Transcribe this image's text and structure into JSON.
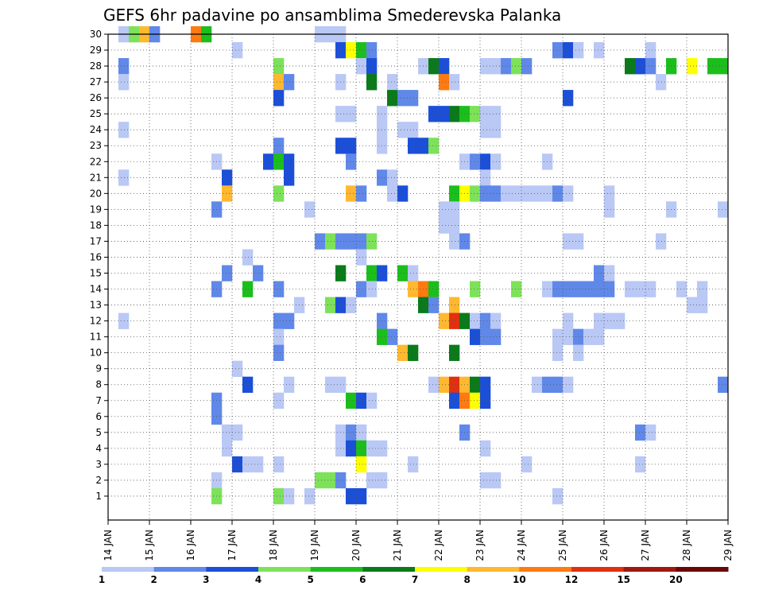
{
  "chart_data": {
    "type": "heatmap",
    "title": "GEFS 6hr padavine po ansamblima Smederevska Palanka",
    "x_tick_labels": [
      "14 JAN",
      "15 JAN",
      "16 JAN",
      "17 JAN",
      "18 JAN",
      "19 JAN",
      "20 JAN",
      "21 JAN",
      "22 JAN",
      "23 JAN",
      "24 JAN",
      "25 JAN",
      "26 JAN",
      "27 JAN",
      "28 JAN",
      "29 JAN"
    ],
    "y_tick_labels": [
      "1",
      "2",
      "3",
      "4",
      "5",
      "6",
      "7",
      "8",
      "9",
      "10",
      "11",
      "12",
      "13",
      "14",
      "15",
      "16",
      "17",
      "18",
      "19",
      "20",
      "21",
      "22",
      "23",
      "24",
      "25",
      "26",
      "27",
      "28",
      "29",
      "30"
    ],
    "xlim_steps": [
      0,
      60
    ],
    "ylim": [
      0,
      30
    ],
    "grid": true,
    "colorbar": {
      "labels": [
        "1",
        "2",
        "3",
        "4",
        "5",
        "6",
        "7",
        "8",
        "10",
        "12",
        "15",
        "20"
      ],
      "colors": [
        "#b9c8f5",
        "#6088e8",
        "#1c4fd8",
        "#7de25a",
        "#1cbe1c",
        "#0a7a1a",
        "#ffff00",
        "#ffb830",
        "#ff7a10",
        "#e03010",
        "#a01810",
        "#6a0808"
      ]
    },
    "cells": [
      [
        1,
        30,
        "#b9c8f5"
      ],
      [
        2,
        30,
        "#7de25a"
      ],
      [
        3,
        30,
        "#ffb830"
      ],
      [
        4,
        30,
        "#6088e8"
      ],
      [
        8,
        30,
        "#ff7a10"
      ],
      [
        9,
        30,
        "#1cbe1c"
      ],
      [
        20,
        30,
        "#b9c8f5"
      ],
      [
        21,
        30,
        "#b9c8f5"
      ],
      [
        22,
        30,
        "#b9c8f5"
      ],
      [
        12,
        29,
        "#b9c8f5"
      ],
      [
        22,
        29,
        "#1c4fd8"
      ],
      [
        23,
        29,
        "#ffff00"
      ],
      [
        24,
        29,
        "#1cbe1c"
      ],
      [
        25,
        29,
        "#6088e8"
      ],
      [
        43,
        29,
        "#6088e8"
      ],
      [
        44,
        29,
        "#1c4fd8"
      ],
      [
        45,
        29,
        "#b9c8f5"
      ],
      [
        47,
        29,
        "#b9c8f5"
      ],
      [
        52,
        29,
        "#b9c8f5"
      ],
      [
        1,
        28,
        "#6088e8"
      ],
      [
        16,
        28,
        "#7de25a"
      ],
      [
        24,
        28,
        "#b9c8f5"
      ],
      [
        25,
        28,
        "#1c4fd8"
      ],
      [
        30,
        28,
        "#b9c8f5"
      ],
      [
        31,
        28,
        "#0a7a1a"
      ],
      [
        32,
        28,
        "#1c4fd8"
      ],
      [
        36,
        28,
        "#b9c8f5"
      ],
      [
        37,
        28,
        "#b9c8f5"
      ],
      [
        38,
        28,
        "#6088e8"
      ],
      [
        39,
        28,
        "#7de25a"
      ],
      [
        40,
        28,
        "#6088e8"
      ],
      [
        50,
        28,
        "#0a7a1a"
      ],
      [
        51,
        28,
        "#1c4fd8"
      ],
      [
        52,
        28,
        "#6088e8"
      ],
      [
        54,
        28,
        "#1cbe1c"
      ],
      [
        56,
        28,
        "#ffff00"
      ],
      [
        58,
        28,
        "#1cbe1c"
      ],
      [
        59,
        28,
        "#1cbe1c"
      ],
      [
        1,
        27,
        "#b9c8f5"
      ],
      [
        16,
        27,
        "#ffb830"
      ],
      [
        17,
        27,
        "#6088e8"
      ],
      [
        22,
        27,
        "#b9c8f5"
      ],
      [
        25,
        27,
        "#0a7a1a"
      ],
      [
        27,
        27,
        "#b9c8f5"
      ],
      [
        32,
        27,
        "#ff7a10"
      ],
      [
        33,
        27,
        "#b9c8f5"
      ],
      [
        53,
        27,
        "#b9c8f5"
      ],
      [
        16,
        26,
        "#1c4fd8"
      ],
      [
        27,
        26,
        "#0a7a1a"
      ],
      [
        28,
        26,
        "#6088e8"
      ],
      [
        29,
        26,
        "#6088e8"
      ],
      [
        44,
        26,
        "#1c4fd8"
      ],
      [
        22,
        25,
        "#b9c8f5"
      ],
      [
        23,
        25,
        "#b9c8f5"
      ],
      [
        26,
        25,
        "#b9c8f5"
      ],
      [
        31,
        25,
        "#1c4fd8"
      ],
      [
        32,
        25,
        "#1c4fd8"
      ],
      [
        33,
        25,
        "#0a7a1a"
      ],
      [
        34,
        25,
        "#1cbe1c"
      ],
      [
        35,
        25,
        "#7de25a"
      ],
      [
        36,
        25,
        "#b9c8f5"
      ],
      [
        37,
        25,
        "#b9c8f5"
      ],
      [
        1,
        24,
        "#b9c8f5"
      ],
      [
        26,
        24,
        "#b9c8f5"
      ],
      [
        28,
        24,
        "#b9c8f5"
      ],
      [
        29,
        24,
        "#b9c8f5"
      ],
      [
        36,
        24,
        "#b9c8f5"
      ],
      [
        37,
        24,
        "#b9c8f5"
      ],
      [
        16,
        23,
        "#6088e8"
      ],
      [
        22,
        23,
        "#1c4fd8"
      ],
      [
        23,
        23,
        "#1c4fd8"
      ],
      [
        26,
        23,
        "#b9c8f5"
      ],
      [
        29,
        23,
        "#1c4fd8"
      ],
      [
        30,
        23,
        "#1c4fd8"
      ],
      [
        31,
        23,
        "#7de25a"
      ],
      [
        10,
        22,
        "#b9c8f5"
      ],
      [
        15,
        22,
        "#1c4fd8"
      ],
      [
        16,
        22,
        "#1cbe1c"
      ],
      [
        17,
        22,
        "#1c4fd8"
      ],
      [
        23,
        22,
        "#6088e8"
      ],
      [
        34,
        22,
        "#b9c8f5"
      ],
      [
        35,
        22,
        "#6088e8"
      ],
      [
        36,
        22,
        "#1c4fd8"
      ],
      [
        37,
        22,
        "#b9c8f5"
      ],
      [
        42,
        22,
        "#b9c8f5"
      ],
      [
        1,
        21,
        "#b9c8f5"
      ],
      [
        11,
        21,
        "#1c4fd8"
      ],
      [
        17,
        21,
        "#1c4fd8"
      ],
      [
        26,
        21,
        "#6088e8"
      ],
      [
        27,
        21,
        "#b9c8f5"
      ],
      [
        36,
        21,
        "#b9c8f5"
      ],
      [
        11,
        20,
        "#ffb830"
      ],
      [
        16,
        20,
        "#7de25a"
      ],
      [
        23,
        20,
        "#ffb830"
      ],
      [
        24,
        20,
        "#6088e8"
      ],
      [
        27,
        20,
        "#b9c8f5"
      ],
      [
        28,
        20,
        "#1c4fd8"
      ],
      [
        33,
        20,
        "#1cbe1c"
      ],
      [
        34,
        20,
        "#ffff00"
      ],
      [
        35,
        20,
        "#7de25a"
      ],
      [
        36,
        20,
        "#6088e8"
      ],
      [
        37,
        20,
        "#6088e8"
      ],
      [
        38,
        20,
        "#b9c8f5"
      ],
      [
        39,
        20,
        "#b9c8f5"
      ],
      [
        40,
        20,
        "#b9c8f5"
      ],
      [
        41,
        20,
        "#b9c8f5"
      ],
      [
        42,
        20,
        "#b9c8f5"
      ],
      [
        43,
        20,
        "#6088e8"
      ],
      [
        44,
        20,
        "#b9c8f5"
      ],
      [
        48,
        20,
        "#b9c8f5"
      ],
      [
        10,
        19,
        "#6088e8"
      ],
      [
        19,
        19,
        "#b9c8f5"
      ],
      [
        32,
        19,
        "#b9c8f5"
      ],
      [
        33,
        19,
        "#b9c8f5"
      ],
      [
        48,
        19,
        "#b9c8f5"
      ],
      [
        54,
        19,
        "#b9c8f5"
      ],
      [
        59,
        19,
        "#b9c8f5"
      ],
      [
        32,
        18,
        "#b9c8f5"
      ],
      [
        33,
        18,
        "#b9c8f5"
      ],
      [
        20,
        17,
        "#6088e8"
      ],
      [
        21,
        17,
        "#7de25a"
      ],
      [
        22,
        17,
        "#6088e8"
      ],
      [
        23,
        17,
        "#6088e8"
      ],
      [
        24,
        17,
        "#6088e8"
      ],
      [
        25,
        17,
        "#7de25a"
      ],
      [
        33,
        17,
        "#b9c8f5"
      ],
      [
        34,
        17,
        "#6088e8"
      ],
      [
        44,
        17,
        "#b9c8f5"
      ],
      [
        45,
        17,
        "#b9c8f5"
      ],
      [
        53,
        17,
        "#b9c8f5"
      ],
      [
        24,
        16,
        "#b9c8f5"
      ],
      [
        13,
        16,
        "#b9c8f5"
      ],
      [
        11,
        15,
        "#6088e8"
      ],
      [
        14,
        15,
        "#6088e8"
      ],
      [
        22,
        15,
        "#0a7a1a"
      ],
      [
        25,
        15,
        "#1cbe1c"
      ],
      [
        26,
        15,
        "#1c4fd8"
      ],
      [
        28,
        15,
        "#1cbe1c"
      ],
      [
        29,
        15,
        "#b9c8f5"
      ],
      [
        47,
        15,
        "#6088e8"
      ],
      [
        48,
        15,
        "#b9c8f5"
      ],
      [
        10,
        14,
        "#6088e8"
      ],
      [
        13,
        14,
        "#1cbe1c"
      ],
      [
        16,
        14,
        "#6088e8"
      ],
      [
        24,
        14,
        "#6088e8"
      ],
      [
        25,
        14,
        "#b9c8f5"
      ],
      [
        29,
        14,
        "#ffb830"
      ],
      [
        30,
        14,
        "#ff7a10"
      ],
      [
        31,
        14,
        "#1cbe1c"
      ],
      [
        35,
        14,
        "#7de25a"
      ],
      [
        39,
        14,
        "#7de25a"
      ],
      [
        42,
        14,
        "#b9c8f5"
      ],
      [
        43,
        14,
        "#6088e8"
      ],
      [
        44,
        14,
        "#6088e8"
      ],
      [
        45,
        14,
        "#6088e8"
      ],
      [
        46,
        14,
        "#6088e8"
      ],
      [
        47,
        14,
        "#6088e8"
      ],
      [
        48,
        14,
        "#6088e8"
      ],
      [
        50,
        14,
        "#b9c8f5"
      ],
      [
        51,
        14,
        "#b9c8f5"
      ],
      [
        52,
        14,
        "#b9c8f5"
      ],
      [
        55,
        14,
        "#b9c8f5"
      ],
      [
        57,
        14,
        "#b9c8f5"
      ],
      [
        18,
        13,
        "#b9c8f5"
      ],
      [
        21,
        13,
        "#7de25a"
      ],
      [
        22,
        13,
        "#1c4fd8"
      ],
      [
        23,
        13,
        "#b9c8f5"
      ],
      [
        30,
        13,
        "#0a7a1a"
      ],
      [
        31,
        13,
        "#6088e8"
      ],
      [
        33,
        13,
        "#ffb830"
      ],
      [
        56,
        13,
        "#b9c8f5"
      ],
      [
        57,
        13,
        "#b9c8f5"
      ],
      [
        1,
        12,
        "#b9c8f5"
      ],
      [
        16,
        12,
        "#6088e8"
      ],
      [
        17,
        12,
        "#6088e8"
      ],
      [
        26,
        12,
        "#6088e8"
      ],
      [
        32,
        12,
        "#ffb830"
      ],
      [
        33,
        12,
        "#e03010"
      ],
      [
        34,
        12,
        "#0a7a1a"
      ],
      [
        35,
        12,
        "#b9c8f5"
      ],
      [
        36,
        12,
        "#6088e8"
      ],
      [
        37,
        12,
        "#b9c8f5"
      ],
      [
        44,
        12,
        "#b9c8f5"
      ],
      [
        47,
        12,
        "#b9c8f5"
      ],
      [
        48,
        12,
        "#b9c8f5"
      ],
      [
        49,
        12,
        "#b9c8f5"
      ],
      [
        16,
        11,
        "#b9c8f5"
      ],
      [
        26,
        11,
        "#1cbe1c"
      ],
      [
        27,
        11,
        "#6088e8"
      ],
      [
        35,
        11,
        "#1c4fd8"
      ],
      [
        36,
        11,
        "#6088e8"
      ],
      [
        37,
        11,
        "#6088e8"
      ],
      [
        43,
        11,
        "#b9c8f5"
      ],
      [
        44,
        11,
        "#b9c8f5"
      ],
      [
        45,
        11,
        "#6088e8"
      ],
      [
        46,
        11,
        "#b9c8f5"
      ],
      [
        47,
        11,
        "#b9c8f5"
      ],
      [
        16,
        10,
        "#6088e8"
      ],
      [
        28,
        10,
        "#ffb830"
      ],
      [
        29,
        10,
        "#0a7a1a"
      ],
      [
        33,
        10,
        "#0a7a1a"
      ],
      [
        43,
        10,
        "#b9c8f5"
      ],
      [
        45,
        10,
        "#b9c8f5"
      ],
      [
        12,
        9,
        "#b9c8f5"
      ],
      [
        13,
        8,
        "#1c4fd8"
      ],
      [
        17,
        8,
        "#b9c8f5"
      ],
      [
        21,
        8,
        "#b9c8f5"
      ],
      [
        22,
        8,
        "#b9c8f5"
      ],
      [
        31,
        8,
        "#b9c8f5"
      ],
      [
        32,
        8,
        "#ffb830"
      ],
      [
        33,
        8,
        "#e03010"
      ],
      [
        34,
        8,
        "#ffb830"
      ],
      [
        35,
        8,
        "#0a7a1a"
      ],
      [
        36,
        8,
        "#1c4fd8"
      ],
      [
        41,
        8,
        "#b9c8f5"
      ],
      [
        42,
        8,
        "#6088e8"
      ],
      [
        43,
        8,
        "#6088e8"
      ],
      [
        44,
        8,
        "#b9c8f5"
      ],
      [
        59,
        8,
        "#6088e8"
      ],
      [
        10,
        7,
        "#6088e8"
      ],
      [
        16,
        7,
        "#b9c8f5"
      ],
      [
        23,
        7,
        "#1cbe1c"
      ],
      [
        24,
        7,
        "#1c4fd8"
      ],
      [
        25,
        7,
        "#b9c8f5"
      ],
      [
        33,
        7,
        "#1c4fd8"
      ],
      [
        34,
        7,
        "#ff7a10"
      ],
      [
        35,
        7,
        "#ffff00"
      ],
      [
        36,
        7,
        "#1c4fd8"
      ],
      [
        10,
        6,
        "#6088e8"
      ],
      [
        11,
        5,
        "#b9c8f5"
      ],
      [
        12,
        5,
        "#b9c8f5"
      ],
      [
        22,
        5,
        "#b9c8f5"
      ],
      [
        23,
        5,
        "#6088e8"
      ],
      [
        24,
        5,
        "#b9c8f5"
      ],
      [
        34,
        5,
        "#6088e8"
      ],
      [
        51,
        5,
        "#6088e8"
      ],
      [
        52,
        5,
        "#b9c8f5"
      ],
      [
        11,
        4,
        "#b9c8f5"
      ],
      [
        22,
        4,
        "#b9c8f5"
      ],
      [
        23,
        4,
        "#1c4fd8"
      ],
      [
        24,
        4,
        "#1cbe1c"
      ],
      [
        25,
        4,
        "#b9c8f5"
      ],
      [
        26,
        4,
        "#b9c8f5"
      ],
      [
        36,
        4,
        "#b9c8f5"
      ],
      [
        12,
        3,
        "#1c4fd8"
      ],
      [
        13,
        3,
        "#b9c8f5"
      ],
      [
        14,
        3,
        "#b9c8f5"
      ],
      [
        16,
        3,
        "#b9c8f5"
      ],
      [
        24,
        3,
        "#ffff00"
      ],
      [
        29,
        3,
        "#b9c8f5"
      ],
      [
        40,
        3,
        "#b9c8f5"
      ],
      [
        51,
        3,
        "#b9c8f5"
      ],
      [
        10,
        2,
        "#b9c8f5"
      ],
      [
        20,
        2,
        "#7de25a"
      ],
      [
        21,
        2,
        "#7de25a"
      ],
      [
        22,
        2,
        "#6088e8"
      ],
      [
        25,
        2,
        "#b9c8f5"
      ],
      [
        26,
        2,
        "#b9c8f5"
      ],
      [
        36,
        2,
        "#b9c8f5"
      ],
      [
        37,
        2,
        "#b9c8f5"
      ],
      [
        10,
        1,
        "#7de25a"
      ],
      [
        16,
        1,
        "#7de25a"
      ],
      [
        17,
        1,
        "#b9c8f5"
      ],
      [
        19,
        1,
        "#b9c8f5"
      ],
      [
        23,
        1,
        "#1c4fd8"
      ],
      [
        24,
        1,
        "#1c4fd8"
      ],
      [
        43,
        1,
        "#b9c8f5"
      ]
    ]
  }
}
